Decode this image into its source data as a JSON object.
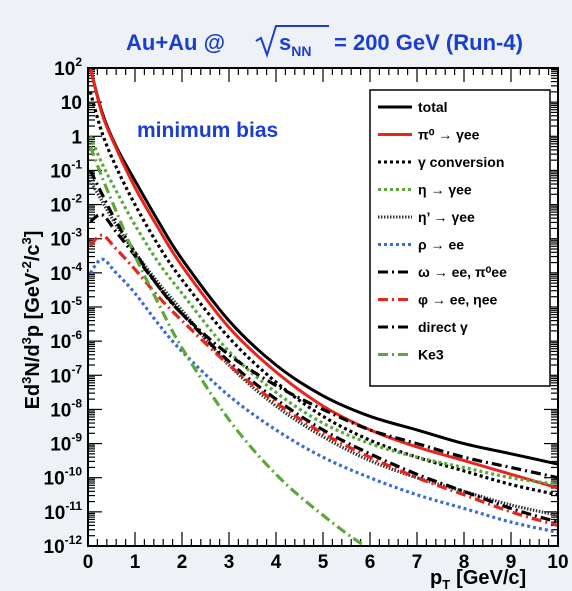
{
  "chart_data": {
    "type": "line",
    "title_parts": {
      "prefix": "Au+Au @",
      "sqrt_var": "s",
      "sqrt_sub": "NN",
      "suffix": "= 200 GeV (Run-4)"
    },
    "annotation": "minimum bias",
    "xlabel": {
      "main": "p",
      "sub": "T",
      "units": "[GeV/c]"
    },
    "ylabel": {
      "a": "Ed",
      "a_sup": "3",
      "b": "N/d",
      "b_sup": "3",
      "c": "p [GeV",
      "c_sup": "-2",
      "d": "/c",
      "d_sup": "3",
      "e": "]"
    },
    "xlim": [
      0,
      10
    ],
    "ylim_log10": [
      -12,
      2
    ],
    "log_y": true,
    "grid": false,
    "legend_position": "top-right",
    "xticks": [
      0,
      1,
      2,
      3,
      4,
      5,
      6,
      7,
      8,
      9,
      10
    ],
    "yticks": [
      {
        "exp": 2,
        "label": "10",
        "sup": "2"
      },
      {
        "exp": 1,
        "label": "10",
        "sup": ""
      },
      {
        "exp": 0,
        "label": "1",
        "sup": ""
      },
      {
        "exp": -1,
        "label": "10",
        "sup": "-1"
      },
      {
        "exp": -2,
        "label": "10",
        "sup": "-2"
      },
      {
        "exp": -3,
        "label": "10",
        "sup": "-3"
      },
      {
        "exp": -4,
        "label": "10",
        "sup": "-4"
      },
      {
        "exp": -5,
        "label": "10",
        "sup": "-5"
      },
      {
        "exp": -6,
        "label": "10",
        "sup": "-6"
      },
      {
        "exp": -7,
        "label": "10",
        "sup": "-7"
      },
      {
        "exp": -8,
        "label": "10",
        "sup": "-8"
      },
      {
        "exp": -9,
        "label": "10",
        "sup": "-9"
      },
      {
        "exp": -10,
        "label": "10",
        "sup": "-10"
      },
      {
        "exp": -11,
        "label": "10",
        "sup": "-11"
      },
      {
        "exp": -12,
        "label": "10",
        "sup": "-12"
      }
    ],
    "series": [
      {
        "name": "total",
        "color": "#000000",
        "dash": "solid",
        "x": [
          0.05,
          0.3,
          0.6,
          1,
          1.5,
          2,
          3,
          4,
          5,
          6,
          7,
          8,
          9,
          10
        ],
        "log_y": [
          2.0,
          0.7,
          -0.3,
          -1.3,
          -2.5,
          -3.6,
          -5.4,
          -6.7,
          -7.6,
          -8.2,
          -8.6,
          -9.0,
          -9.3,
          -9.6
        ]
      },
      {
        "name": "π⁰ → γee",
        "color": "#e8241c",
        "dash": "solid",
        "x": [
          0.05,
          0.3,
          0.6,
          1,
          1.5,
          2,
          3,
          4,
          5,
          6,
          7,
          8,
          9,
          10
        ],
        "log_y": [
          2.0,
          0.65,
          -0.35,
          -1.5,
          -2.7,
          -3.8,
          -5.6,
          -6.9,
          -7.9,
          -8.6,
          -9.1,
          -9.5,
          -9.9,
          -10.3
        ]
      },
      {
        "name": "γ conversion",
        "color": "#000000",
        "dash": "dot",
        "x": [
          0.05,
          0.3,
          0.6,
          1,
          1.5,
          2,
          3,
          4,
          5,
          6,
          7,
          8,
          9,
          10
        ],
        "log_y": [
          1.3,
          0.1,
          -0.9,
          -2.0,
          -3.2,
          -4.2,
          -5.9,
          -7.2,
          -8.2,
          -8.9,
          -9.4,
          -9.8,
          -10.2,
          -10.5
        ]
      },
      {
        "name": "η → γee",
        "color": "#5ca83c",
        "dash": "dot",
        "x": [
          0.05,
          0.3,
          0.6,
          1,
          1.5,
          2,
          3,
          4,
          5,
          6,
          7,
          8,
          9,
          10
        ],
        "log_y": [
          0.0,
          -0.8,
          -1.6,
          -2.6,
          -3.7,
          -4.6,
          -6.3,
          -7.5,
          -8.4,
          -9.0,
          -9.4,
          -9.7,
          -10.0,
          -10.2
        ]
      },
      {
        "name": "η’ → γee",
        "color": "#333333",
        "dash": "finedot",
        "x": [
          0.05,
          0.3,
          0.6,
          1,
          1.5,
          2,
          3,
          4,
          5,
          6,
          7,
          8,
          9,
          10
        ],
        "log_y": [
          -1.3,
          -1.9,
          -2.6,
          -3.4,
          -4.3,
          -5.1,
          -6.7,
          -7.9,
          -8.8,
          -9.5,
          -10.0,
          -10.4,
          -10.8,
          -11.1
        ]
      },
      {
        "name": "ρ → ee",
        "color": "#3b6ed0",
        "dash": "dot",
        "x": [
          0.05,
          0.3,
          0.6,
          1,
          1.5,
          2,
          3,
          4,
          5,
          6,
          7,
          8,
          9,
          10
        ],
        "log_y": [
          -4.0,
          -3.6,
          -4.0,
          -4.6,
          -5.5,
          -6.3,
          -7.6,
          -8.6,
          -9.4,
          -10.0,
          -10.5,
          -10.9,
          -11.3,
          -11.6
        ]
      },
      {
        "name": "ω → ee, π⁰ee",
        "color": "#000000",
        "dash": "dashdot",
        "x": [
          0.05,
          0.3,
          0.6,
          1,
          1.5,
          2,
          3,
          4,
          5,
          6,
          7,
          8,
          9,
          10
        ],
        "log_y": [
          -2.5,
          -2.3,
          -2.8,
          -3.5,
          -4.4,
          -5.2,
          -6.6,
          -7.7,
          -8.6,
          -9.3,
          -9.9,
          -10.4,
          -10.9,
          -11.3
        ]
      },
      {
        "name": "φ → ee, ηee",
        "color": "#e8241c",
        "dash": "dashdot",
        "x": [
          0.05,
          0.3,
          0.6,
          1,
          1.5,
          2,
          3,
          4,
          5,
          6,
          7,
          8,
          9,
          10
        ],
        "log_y": [
          -3.2,
          -2.9,
          -3.3,
          -3.9,
          -4.7,
          -5.4,
          -6.7,
          -7.8,
          -8.7,
          -9.4,
          -10.0,
          -10.5,
          -11.0,
          -11.4
        ]
      },
      {
        "name": "direct γ",
        "color": "#000000",
        "dash": "dashdot",
        "x": [
          0.05,
          0.3,
          0.6,
          1,
          1.5,
          2,
          3,
          4,
          5,
          6,
          7,
          8,
          9,
          10
        ],
        "log_y": [
          -1.0,
          -1.7,
          -2.5,
          -3.4,
          -4.4,
          -5.2,
          -6.4,
          -7.3,
          -8.0,
          -8.6,
          -9.0,
          -9.4,
          -9.7,
          -10.0
        ]
      },
      {
        "name": "Ke3",
        "color": "#5ca83c",
        "dash": "dashdot",
        "x": [
          0.05,
          0.3,
          0.6,
          1,
          1.5,
          2,
          3,
          4,
          5,
          6,
          7
        ],
        "log_y": [
          -0.3,
          -1.2,
          -2.2,
          -3.5,
          -4.9,
          -6.2,
          -8.3,
          -9.9,
          -11.1,
          -12.1,
          -12.8
        ]
      }
    ]
  }
}
